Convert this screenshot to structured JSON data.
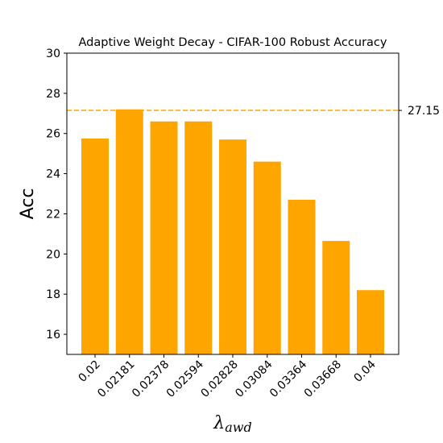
{
  "chart_data": {
    "type": "bar",
    "title": "Adaptive Weight Decay - CIFAR-100 Robust Accuracy",
    "xlabel": "λ",
    "xlabel_subscript": "awd",
    "ylabel": "Acc",
    "categories": [
      "0.02",
      "0.02181",
      "0.02378",
      "0.02594",
      "0.02828",
      "0.03084",
      "0.03364",
      "0.03668",
      "0.04"
    ],
    "values": [
      25.75,
      27.2,
      26.6,
      26.6,
      25.7,
      24.6,
      22.7,
      20.65,
      18.2
    ],
    "ylim": [
      15,
      30
    ],
    "yticks": [
      16,
      18,
      20,
      22,
      24,
      26,
      28,
      30
    ],
    "grid": false,
    "bar_color": "#ffa500",
    "reference_line": {
      "value": 27.15,
      "label": "27.15",
      "style": "dashed",
      "color": "#ffa500"
    }
  }
}
